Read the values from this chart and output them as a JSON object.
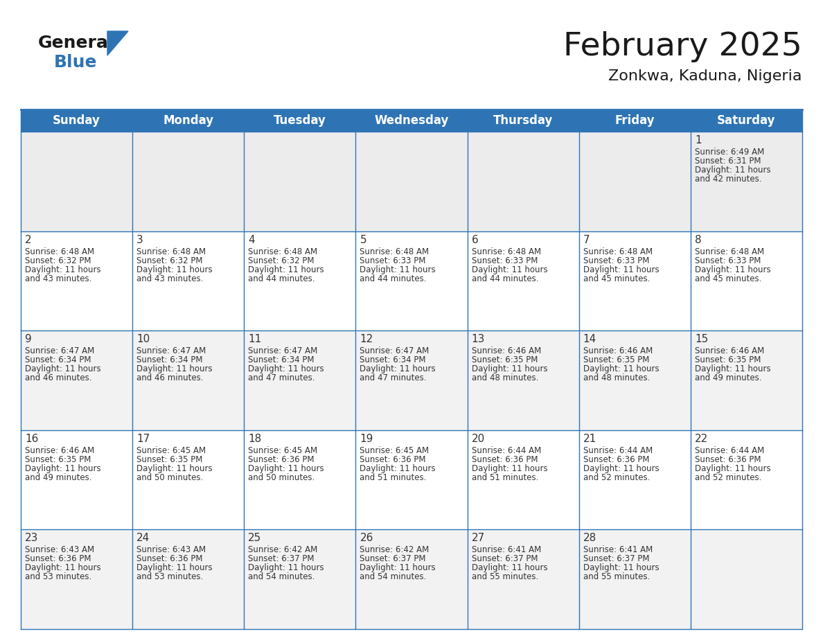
{
  "title": "February 2025",
  "subtitle": "Zonkwa, Kaduna, Nigeria",
  "header_color": "#2E74B5",
  "header_text_color": "#FFFFFF",
  "row1_bg": "#ECECEC",
  "row_odd_bg": "#FFFFFF",
  "row_even_bg": "#F2F2F2",
  "border_color": "#2E74B5",
  "cell_border_color": "#C0C0C0",
  "day_names": [
    "Sunday",
    "Monday",
    "Tuesday",
    "Wednesday",
    "Thursday",
    "Friday",
    "Saturday"
  ],
  "title_fontsize": 34,
  "subtitle_fontsize": 16,
  "header_fontsize": 12,
  "day_num_fontsize": 11,
  "cell_text_fontsize": 8.5,
  "logo_general_color": "#1A1A1A",
  "logo_blue_color": "#2E74B5",
  "calendar_data": {
    "1": {
      "sunrise": "6:49 AM",
      "sunset": "6:31 PM",
      "daylight_hours": 11,
      "daylight_minutes": 42
    },
    "2": {
      "sunrise": "6:48 AM",
      "sunset": "6:32 PM",
      "daylight_hours": 11,
      "daylight_minutes": 43
    },
    "3": {
      "sunrise": "6:48 AM",
      "sunset": "6:32 PM",
      "daylight_hours": 11,
      "daylight_minutes": 43
    },
    "4": {
      "sunrise": "6:48 AM",
      "sunset": "6:32 PM",
      "daylight_hours": 11,
      "daylight_minutes": 44
    },
    "5": {
      "sunrise": "6:48 AM",
      "sunset": "6:33 PM",
      "daylight_hours": 11,
      "daylight_minutes": 44
    },
    "6": {
      "sunrise": "6:48 AM",
      "sunset": "6:33 PM",
      "daylight_hours": 11,
      "daylight_minutes": 44
    },
    "7": {
      "sunrise": "6:48 AM",
      "sunset": "6:33 PM",
      "daylight_hours": 11,
      "daylight_minutes": 45
    },
    "8": {
      "sunrise": "6:48 AM",
      "sunset": "6:33 PM",
      "daylight_hours": 11,
      "daylight_minutes": 45
    },
    "9": {
      "sunrise": "6:47 AM",
      "sunset": "6:34 PM",
      "daylight_hours": 11,
      "daylight_minutes": 46
    },
    "10": {
      "sunrise": "6:47 AM",
      "sunset": "6:34 PM",
      "daylight_hours": 11,
      "daylight_minutes": 46
    },
    "11": {
      "sunrise": "6:47 AM",
      "sunset": "6:34 PM",
      "daylight_hours": 11,
      "daylight_minutes": 47
    },
    "12": {
      "sunrise": "6:47 AM",
      "sunset": "6:34 PM",
      "daylight_hours": 11,
      "daylight_minutes": 47
    },
    "13": {
      "sunrise": "6:46 AM",
      "sunset": "6:35 PM",
      "daylight_hours": 11,
      "daylight_minutes": 48
    },
    "14": {
      "sunrise": "6:46 AM",
      "sunset": "6:35 PM",
      "daylight_hours": 11,
      "daylight_minutes": 48
    },
    "15": {
      "sunrise": "6:46 AM",
      "sunset": "6:35 PM",
      "daylight_hours": 11,
      "daylight_minutes": 49
    },
    "16": {
      "sunrise": "6:46 AM",
      "sunset": "6:35 PM",
      "daylight_hours": 11,
      "daylight_minutes": 49
    },
    "17": {
      "sunrise": "6:45 AM",
      "sunset": "6:35 PM",
      "daylight_hours": 11,
      "daylight_minutes": 50
    },
    "18": {
      "sunrise": "6:45 AM",
      "sunset": "6:36 PM",
      "daylight_hours": 11,
      "daylight_minutes": 50
    },
    "19": {
      "sunrise": "6:45 AM",
      "sunset": "6:36 PM",
      "daylight_hours": 11,
      "daylight_minutes": 51
    },
    "20": {
      "sunrise": "6:44 AM",
      "sunset": "6:36 PM",
      "daylight_hours": 11,
      "daylight_minutes": 51
    },
    "21": {
      "sunrise": "6:44 AM",
      "sunset": "6:36 PM",
      "daylight_hours": 11,
      "daylight_minutes": 52
    },
    "22": {
      "sunrise": "6:44 AM",
      "sunset": "6:36 PM",
      "daylight_hours": 11,
      "daylight_minutes": 52
    },
    "23": {
      "sunrise": "6:43 AM",
      "sunset": "6:36 PM",
      "daylight_hours": 11,
      "daylight_minutes": 53
    },
    "24": {
      "sunrise": "6:43 AM",
      "sunset": "6:36 PM",
      "daylight_hours": 11,
      "daylight_minutes": 53
    },
    "25": {
      "sunrise": "6:42 AM",
      "sunset": "6:37 PM",
      "daylight_hours": 11,
      "daylight_minutes": 54
    },
    "26": {
      "sunrise": "6:42 AM",
      "sunset": "6:37 PM",
      "daylight_hours": 11,
      "daylight_minutes": 54
    },
    "27": {
      "sunrise": "6:41 AM",
      "sunset": "6:37 PM",
      "daylight_hours": 11,
      "daylight_minutes": 55
    },
    "28": {
      "sunrise": "6:41 AM",
      "sunset": "6:37 PM",
      "daylight_hours": 11,
      "daylight_minutes": 55
    }
  }
}
